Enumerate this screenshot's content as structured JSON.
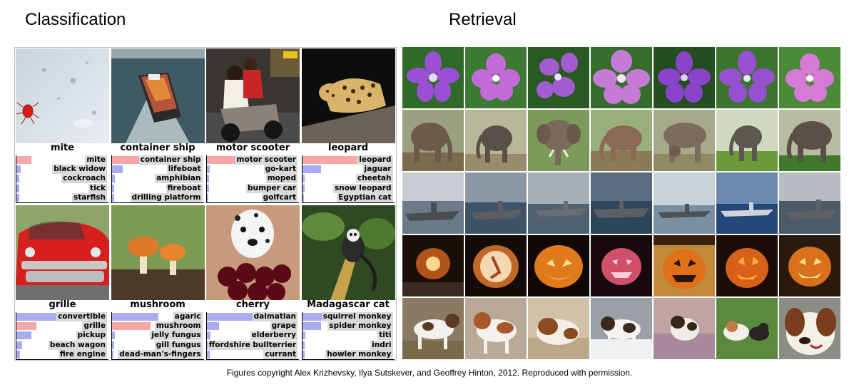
{
  "headings": {
    "classification": "Classification",
    "retrieval": "Retrieval"
  },
  "classification": [
    {
      "label": "mite",
      "predictions": [
        {
          "name": "mite",
          "score": 0.16,
          "correct": true
        },
        {
          "name": "black widow",
          "score": 0.05,
          "correct": false
        },
        {
          "name": "cockroach",
          "score": 0.03,
          "correct": false
        },
        {
          "name": "tick",
          "score": 0.03,
          "correct": false
        },
        {
          "name": "starfish",
          "score": 0.03,
          "correct": false
        }
      ]
    },
    {
      "label": "container ship",
      "predictions": [
        {
          "name": "container ship",
          "score": 0.98,
          "correct": true
        },
        {
          "name": "lifeboat",
          "score": 0.12,
          "correct": false
        },
        {
          "name": "amphibian",
          "score": 0.03,
          "correct": false
        },
        {
          "name": "fireboat",
          "score": 0.02,
          "correct": false
        },
        {
          "name": "drilling platform",
          "score": 0.02,
          "correct": false
        }
      ]
    },
    {
      "label": "motor scooter",
      "predictions": [
        {
          "name": "motor scooter",
          "score": 0.95,
          "correct": true
        },
        {
          "name": "go-kart",
          "score": 0.03,
          "correct": false
        },
        {
          "name": "moped",
          "score": 0.02,
          "correct": false
        },
        {
          "name": "bumper car",
          "score": 0.02,
          "correct": false
        },
        {
          "name": "golfcart",
          "score": 0.01,
          "correct": false
        }
      ]
    },
    {
      "label": "leopard",
      "predictions": [
        {
          "name": "leopard",
          "score": 0.98,
          "correct": true
        },
        {
          "name": "jaguar",
          "score": 0.2,
          "correct": false
        },
        {
          "name": "cheetah",
          "score": 0.02,
          "correct": false
        },
        {
          "name": "snow leopard",
          "score": 0.02,
          "correct": false
        },
        {
          "name": "Egyptian cat",
          "score": 0.01,
          "correct": false
        }
      ]
    },
    {
      "label": "grille",
      "predictions": [
        {
          "name": "convertible",
          "score": 0.95,
          "correct": false
        },
        {
          "name": "grille",
          "score": 0.22,
          "correct": true
        },
        {
          "name": "pickup",
          "score": 0.16,
          "correct": false
        },
        {
          "name": "beach wagon",
          "score": 0.06,
          "correct": false
        },
        {
          "name": "fire engine",
          "score": 0.04,
          "correct": false
        }
      ]
    },
    {
      "label": "mushroom",
      "predictions": [
        {
          "name": "agaric",
          "score": 0.5,
          "correct": false
        },
        {
          "name": "mushroom",
          "score": 0.42,
          "correct": true
        },
        {
          "name": "jelly fungus",
          "score": 0.03,
          "correct": false
        },
        {
          "name": "gill fungus",
          "score": 0.02,
          "correct": false
        },
        {
          "name": "dead-man's-fingers",
          "score": 0.01,
          "correct": false
        }
      ]
    },
    {
      "label": "cherry",
      "predictions": [
        {
          "name": "dalmatian",
          "score": 0.95,
          "correct": false
        },
        {
          "name": "grape",
          "score": 0.13,
          "correct": false
        },
        {
          "name": "elderberry",
          "score": 0.04,
          "correct": false
        },
        {
          "name": "ffordshire bullterrier",
          "score": 0.04,
          "correct": false
        },
        {
          "name": "currant",
          "score": 0.03,
          "correct": false
        }
      ]
    },
    {
      "label": "Madagascar cat",
      "predictions": [
        {
          "name": "squirrel monkey",
          "score": 0.88,
          "correct": false
        },
        {
          "name": "spider monkey",
          "score": 0.2,
          "correct": false
        },
        {
          "name": "titi",
          "score": 0.03,
          "correct": false
        },
        {
          "name": "indri",
          "score": 0.02,
          "correct": false
        },
        {
          "name": "howler monkey",
          "score": 0.02,
          "correct": false
        }
      ]
    }
  ],
  "retrieval_rows": [
    {
      "subject": "purple flowers"
    },
    {
      "subject": "elephants"
    },
    {
      "subject": "aircraft carriers"
    },
    {
      "subject": "jack-o'-lanterns"
    },
    {
      "subject": "dogs"
    }
  ],
  "caption": "Figures copyright Alex Krizhevsky, Ilya Sutskever, and Geoffrey Hinton, 2012. Reproduced with permission.",
  "colors": {
    "correct_bar": "#f4a8a8",
    "other_bar": "#a9adf0",
    "label_background": "#d9d9d9"
  }
}
